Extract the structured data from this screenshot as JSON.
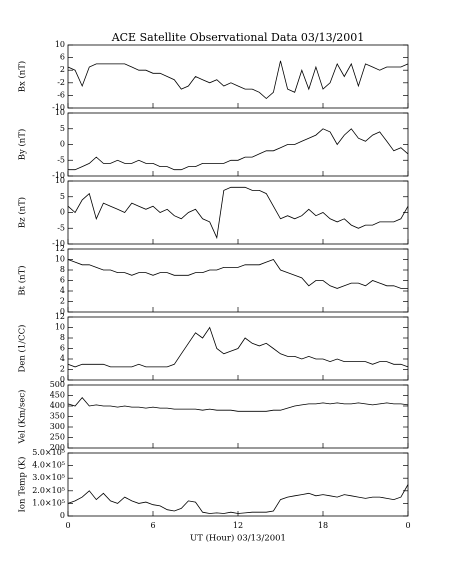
{
  "chart_data": {
    "type": "line",
    "title": "ACE Satellite Observational Data   03/13/2001",
    "xlabel": "UT (Hour)  03/13/2001",
    "xlim": [
      0,
      24
    ],
    "xticks": [
      0,
      6,
      12,
      18,
      {
        "value": 24,
        "label": "0"
      }
    ],
    "color": "#000000",
    "x": [
      0,
      0.5,
      1,
      1.5,
      2,
      2.5,
      3,
      3.5,
      4,
      4.5,
      5,
      5.5,
      6,
      6.5,
      7,
      7.5,
      8,
      8.5,
      9,
      9.5,
      10,
      10.5,
      11,
      11.5,
      12,
      12.5,
      13,
      13.5,
      14,
      14.5,
      15,
      15.5,
      16,
      16.5,
      17,
      17.5,
      18,
      18.5,
      19,
      19.5,
      20,
      20.5,
      21,
      21.5,
      22,
      22.5,
      23,
      23.5,
      24
    ],
    "panels": [
      {
        "ylabel": "Bx (nT)",
        "ylim": [
          -10,
          10
        ],
        "yticks": [
          -10,
          -6,
          -2,
          2,
          6,
          10
        ],
        "values": [
          3,
          2,
          -3,
          3,
          4,
          4,
          4,
          4,
          4,
          3,
          2,
          2,
          1,
          1,
          0,
          -1,
          -4,
          -3,
          0,
          -1,
          -2,
          -1,
          -3,
          -2,
          -3,
          -4,
          -4,
          -5,
          -7,
          -5,
          5,
          -4,
          -5,
          2,
          -4,
          3,
          -4,
          -2,
          4,
          0,
          4,
          -3,
          4,
          3,
          2,
          3,
          3,
          3,
          4
        ]
      },
      {
        "ylabel": "By (nT)",
        "ylim": [
          -10,
          10
        ],
        "yticks": [
          -10,
          -5,
          0,
          5,
          10
        ],
        "values": [
          -8,
          -8,
          -7,
          -6,
          -4,
          -6,
          -6,
          -5,
          -6,
          -6,
          -5,
          -6,
          -6,
          -7,
          -7,
          -8,
          -8,
          -7,
          -7,
          -6,
          -6,
          -6,
          -6,
          -5,
          -5,
          -4,
          -4,
          -3,
          -2,
          -2,
          -1,
          0,
          0,
          1,
          2,
          3,
          5,
          4,
          0,
          3,
          5,
          2,
          1,
          3,
          4,
          1,
          -2,
          -1,
          -3
        ]
      },
      {
        "ylabel": "Bz (nT)",
        "ylim": [
          -10,
          10
        ],
        "yticks": [
          -10,
          -5,
          0,
          5,
          10
        ],
        "values": [
          2,
          0,
          4,
          6,
          -2,
          3,
          2,
          1,
          0,
          3,
          2,
          1,
          2,
          0,
          1,
          -1,
          -2,
          0,
          1,
          -2,
          -3,
          -8,
          7,
          8,
          8,
          8,
          7,
          7,
          6,
          2,
          -2,
          -1,
          -2,
          -1,
          1,
          -1,
          0,
          -2,
          -3,
          -2,
          -4,
          -5,
          -4,
          -4,
          -3,
          -3,
          -3,
          -2,
          2
        ]
      },
      {
        "ylabel": "Bt (nT)",
        "ylim": [
          0,
          12
        ],
        "yticks": [
          0,
          2,
          4,
          6,
          8,
          10,
          12
        ],
        "values": [
          10,
          9.5,
          9,
          9,
          8.5,
          8,
          8,
          7.5,
          7.5,
          7,
          7.5,
          7.5,
          7,
          7.5,
          7.5,
          7,
          7,
          7,
          7.5,
          7.5,
          8,
          8,
          8.5,
          8.5,
          8.5,
          9,
          9,
          9,
          9.5,
          10,
          8,
          7.5,
          7,
          6.5,
          5,
          6,
          6,
          5,
          4.5,
          5,
          5.5,
          5.5,
          5,
          6,
          5.5,
          5,
          5,
          4.5,
          4.5
        ]
      },
      {
        "ylabel": "Den (1/CC)",
        "ylim": [
          0,
          12
        ],
        "yticks": [
          0,
          2,
          4,
          6,
          8,
          10,
          12
        ],
        "values": [
          3,
          2.5,
          3,
          3,
          3,
          3,
          2.5,
          2.5,
          2.5,
          2.5,
          3,
          2.5,
          2.5,
          2.5,
          2.5,
          3,
          5,
          7,
          9,
          8,
          10,
          6,
          5,
          5.5,
          6,
          8,
          7,
          6.5,
          7,
          6,
          5,
          4.5,
          4.5,
          4,
          4.5,
          4,
          4,
          3.5,
          4,
          3.5,
          3.5,
          3.5,
          3.5,
          3,
          3.5,
          3.5,
          3,
          3,
          2.5
        ]
      },
      {
        "ylabel": "Vel (Km/sec)",
        "ylim": [
          200,
          500
        ],
        "yticks": [
          200,
          250,
          300,
          350,
          400,
          450,
          500
        ],
        "values": [
          410,
          400,
          440,
          400,
          405,
          400,
          400,
          395,
          400,
          395,
          395,
          390,
          395,
          390,
          390,
          385,
          385,
          385,
          385,
          380,
          385,
          380,
          380,
          380,
          375,
          375,
          375,
          375,
          375,
          380,
          380,
          390,
          400,
          405,
          410,
          410,
          415,
          410,
          415,
          410,
          410,
          415,
          410,
          405,
          410,
          415,
          410,
          410,
          405
        ]
      },
      {
        "ylabel": "Ion Temp (K)",
        "ylim": [
          0,
          500000
        ],
        "yticks": [
          0,
          {
            "value": 100000,
            "label": "1.0×10⁵"
          },
          {
            "value": 200000,
            "label": "2.0×10⁵"
          },
          {
            "value": 300000,
            "label": "3.0×10⁵"
          },
          {
            "value": 400000,
            "label": "4.0×10⁵"
          },
          {
            "value": 500000,
            "label": "5.0×10⁵"
          }
        ],
        "values": [
          100000,
          120000,
          150000,
          200000,
          130000,
          180000,
          120000,
          100000,
          150000,
          120000,
          100000,
          110000,
          90000,
          80000,
          50000,
          40000,
          60000,
          120000,
          110000,
          30000,
          20000,
          25000,
          20000,
          30000,
          20000,
          25000,
          30000,
          30000,
          30000,
          40000,
          130000,
          150000,
          160000,
          170000,
          180000,
          160000,
          170000,
          160000,
          150000,
          170000,
          160000,
          150000,
          140000,
          150000,
          150000,
          140000,
          130000,
          150000,
          250000
        ]
      }
    ]
  }
}
